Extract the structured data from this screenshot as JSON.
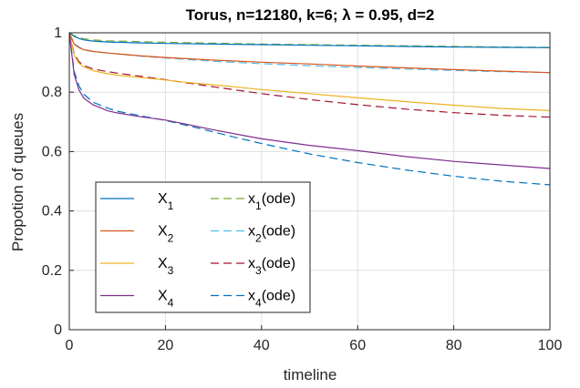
{
  "chart_data": {
    "type": "line",
    "title": "Torus, n=12180, k=6; λ = 0.95, d=2",
    "xlabel": "timeline",
    "ylabel": "Propotion of queues",
    "xlim": [
      0,
      100
    ],
    "ylim": [
      0,
      1
    ],
    "xticks": [
      0,
      20,
      40,
      60,
      80,
      100
    ],
    "yticks": [
      0,
      0.2,
      0.4,
      0.6,
      0.8,
      1
    ],
    "xtick_labels": [
      "0",
      "20",
      "40",
      "60",
      "80",
      "100"
    ],
    "ytick_labels": [
      "0",
      "0.2",
      "0.4",
      "0.6",
      "0.8",
      "1"
    ],
    "grid": true,
    "legend_position": "bottom-left",
    "series": [
      {
        "name": "X_1",
        "label_base": "X",
        "label_sub": "1",
        "style": "solid",
        "color": "#0072BD",
        "x": [
          0,
          1,
          2,
          3,
          5,
          8,
          10,
          15,
          20,
          30,
          40,
          50,
          60,
          70,
          80,
          90,
          100
        ],
        "y": [
          1.0,
          0.988,
          0.981,
          0.976,
          0.972,
          0.969,
          0.968,
          0.966,
          0.964,
          0.962,
          0.96,
          0.958,
          0.956,
          0.954,
          0.952,
          0.951,
          0.95
        ]
      },
      {
        "name": "X_2",
        "label_base": "X",
        "label_sub": "2",
        "style": "solid",
        "color": "#D95319",
        "x": [
          0,
          1,
          2,
          3,
          5,
          8,
          10,
          15,
          20,
          30,
          40,
          50,
          60,
          70,
          80,
          90,
          100
        ],
        "y": [
          1.0,
          0.962,
          0.95,
          0.943,
          0.937,
          0.932,
          0.929,
          0.922,
          0.917,
          0.908,
          0.901,
          0.895,
          0.888,
          0.882,
          0.876,
          0.871,
          0.866
        ]
      },
      {
        "name": "X_3",
        "label_base": "X",
        "label_sub": "3",
        "style": "solid",
        "color": "#EDB120",
        "x": [
          0,
          1,
          2,
          3,
          5,
          8,
          10,
          15,
          20,
          25,
          30,
          40,
          50,
          60,
          70,
          80,
          90,
          100
        ],
        "y": [
          1.0,
          0.925,
          0.898,
          0.885,
          0.872,
          0.862,
          0.857,
          0.849,
          0.841,
          0.832,
          0.825,
          0.809,
          0.795,
          0.781,
          0.768,
          0.756,
          0.745,
          0.738
        ]
      },
      {
        "name": "X_4",
        "label_base": "X",
        "label_sub": "4",
        "style": "solid",
        "color": "#7E2F8E",
        "x": [
          0,
          1,
          2,
          3,
          5,
          8,
          10,
          15,
          20,
          25,
          30,
          35,
          40,
          50,
          60,
          70,
          80,
          90,
          100
        ],
        "y": [
          1.0,
          0.86,
          0.808,
          0.78,
          0.757,
          0.737,
          0.73,
          0.717,
          0.706,
          0.69,
          0.673,
          0.658,
          0.643,
          0.621,
          0.603,
          0.583,
          0.567,
          0.555,
          0.543
        ]
      },
      {
        "name": "x_1(ode)",
        "label_base": "x",
        "label_sub": "1",
        "label_suffix": "(ode)",
        "style": "dashed",
        "color": "#77AC30",
        "x": [
          0,
          1,
          2,
          3,
          5,
          8,
          10,
          15,
          20,
          30,
          40,
          50,
          60,
          70,
          80,
          90,
          100
        ],
        "y": [
          1.0,
          0.99,
          0.984,
          0.98,
          0.976,
          0.973,
          0.972,
          0.97,
          0.968,
          0.965,
          0.962,
          0.96,
          0.958,
          0.956,
          0.954,
          0.952,
          0.951
        ]
      },
      {
        "name": "x_2(ode)",
        "label_base": "x",
        "label_sub": "2",
        "label_suffix": "(ode)",
        "style": "dashed",
        "color": "#4DBEEE",
        "x": [
          0,
          1,
          2,
          3,
          5,
          8,
          10,
          15,
          20,
          30,
          40,
          50,
          60,
          70,
          80,
          90,
          100
        ],
        "y": [
          1.0,
          0.965,
          0.952,
          0.944,
          0.937,
          0.932,
          0.929,
          0.921,
          0.915,
          0.904,
          0.896,
          0.889,
          0.883,
          0.878,
          0.873,
          0.869,
          0.866
        ]
      },
      {
        "name": "x_3(ode)",
        "label_base": "x",
        "label_sub": "3",
        "label_suffix": "(ode)",
        "style": "dashed",
        "color": "#A2142F",
        "x": [
          0,
          1,
          2,
          3,
          5,
          8,
          10,
          15,
          20,
          25,
          30,
          40,
          50,
          60,
          70,
          80,
          90,
          100
        ],
        "y": [
          1.0,
          0.93,
          0.903,
          0.89,
          0.878,
          0.869,
          0.864,
          0.853,
          0.842,
          0.83,
          0.818,
          0.795,
          0.775,
          0.758,
          0.743,
          0.731,
          0.722,
          0.716
        ]
      },
      {
        "name": "x_4(ode)",
        "label_base": "x",
        "label_sub": "4",
        "label_suffix": "(ode)",
        "style": "dashed",
        "color": "#0072BD",
        "x": [
          0,
          1,
          2,
          3,
          5,
          8,
          10,
          15,
          20,
          25,
          30,
          35,
          40,
          50,
          60,
          70,
          80,
          90,
          100
        ],
        "y": [
          1.0,
          0.87,
          0.822,
          0.793,
          0.766,
          0.746,
          0.736,
          0.72,
          0.705,
          0.686,
          0.666,
          0.646,
          0.627,
          0.592,
          0.563,
          0.538,
          0.517,
          0.5,
          0.488
        ]
      }
    ]
  }
}
